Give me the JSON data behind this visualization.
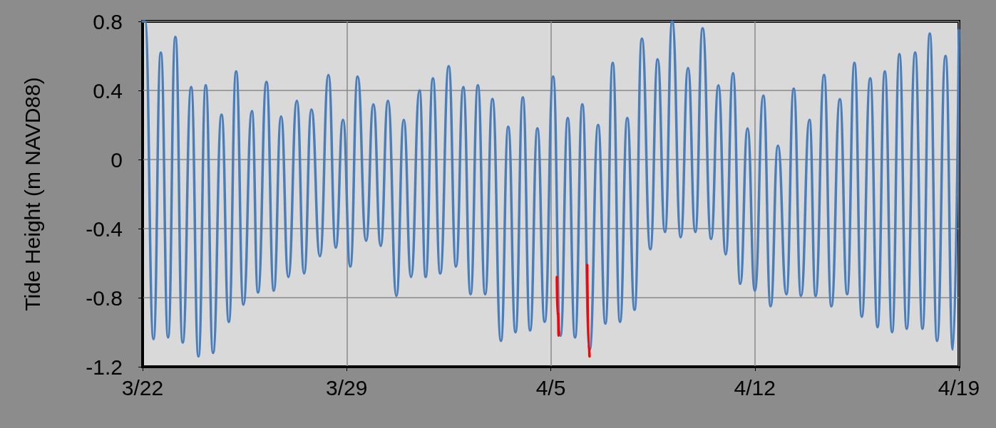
{
  "chart_data": {
    "type": "line",
    "ylabel": "Tide Height (m NAVD88)",
    "xlim": [
      "--03-22",
      "--04-19"
    ],
    "xticks": [
      {
        "value": "--03-22",
        "label": "3/22"
      },
      {
        "value": "--03-29",
        "label": "3/29"
      },
      {
        "value": "--04-05",
        "label": "4/5"
      },
      {
        "value": "--04-12",
        "label": "4/12"
      },
      {
        "value": "--04-19",
        "label": "4/19"
      }
    ],
    "ylim": [
      -1.2,
      0.8
    ],
    "yticks": [
      -1.2,
      -0.8,
      -0.4,
      0,
      0.4,
      0.8
    ],
    "grid": true,
    "marker": "none",
    "line_style": "solid",
    "series": [
      {
        "color": "#4a7ebb",
        "x": [
          "--03-22T00:00",
          "--03-22T02:00",
          "--03-22T09:00",
          "--03-22T15:00",
          "--03-22T21:00",
          "--03-23T03:00",
          "--03-23T09:00",
          "--03-23T16:00",
          "--03-23T22:00",
          "--03-24T04:00",
          "--03-24T10:00",
          "--03-24T17:00",
          "--03-24T23:00",
          "--03-25T05:00",
          "--03-25T11:00",
          "--03-25T18:00",
          "--03-25T23:00",
          "--03-26T06:00",
          "--03-26T12:00",
          "--03-26T18:00",
          "--03-27T00:00",
          "--03-27T07:00",
          "--03-27T13:00",
          "--03-27T19:00",
          "--03-28T02:00",
          "--03-28T09:00",
          "--03-28T15:00",
          "--03-28T21:00",
          "--03-29T03:00",
          "--03-29T09:00",
          "--03-29T16:00",
          "--03-29T22:00",
          "--03-30T04:00",
          "--03-30T10:00",
          "--03-30T17:00",
          "--03-30T23:00",
          "--03-31T05:00",
          "--03-31T12:00",
          "--03-31T17:00",
          "--03-31T23:00",
          "--04-01T05:00",
          "--04-01T12:00",
          "--04-01T18:00",
          "--04-02T00:00",
          "--04-02T06:00",
          "--04-02T12:00",
          "--04-02T18:00",
          "--04-03T00:00",
          "--04-03T07:00",
          "--04-03T13:00",
          "--04-03T19:00",
          "--04-04T01:00",
          "--04-04T07:00",
          "--04-04T13:00",
          "--04-04T19:00",
          "--04-05T02:00",
          "--04-05T08:00",
          "--04-05T14:00",
          "--04-05T20:00",
          "--04-06T02:00",
          "--04-06T08:00",
          "--04-06T15:00",
          "--04-06T21:00",
          "--04-07T03:00",
          "--04-07T09:00",
          "--04-07T15:00",
          "--04-07T21:00",
          "--04-08T03:00",
          "--04-08T10:00",
          "--04-08T16:00",
          "--04-08T22:00",
          "--04-09T04:00",
          "--04-09T11:00",
          "--04-09T17:00",
          "--04-09T23:00",
          "--04-10T05:00",
          "--04-10T12:00",
          "--04-10T18:00",
          "--04-11T00:00",
          "--04-11T06:00",
          "--04-11T12:00",
          "--04-11T18:00",
          "--04-12T00:00",
          "--04-12T07:00",
          "--04-12T13:00",
          "--04-12T19:00",
          "--04-13T02:00",
          "--04-13T08:00",
          "--04-13T14:00",
          "--04-13T21:00",
          "--04-14T02:00",
          "--04-14T09:00",
          "--04-14T15:00",
          "--04-14T22:00",
          "--04-15T04:00",
          "--04-15T10:00",
          "--04-15T16:00",
          "--04-15T23:00",
          "--04-16T05:00",
          "--04-16T11:00",
          "--04-16T17:00",
          "--04-16T23:00",
          "--04-17T05:00",
          "--04-17T12:00",
          "--04-17T18:00",
          "--04-18T00:00",
          "--04-18T06:00",
          "--04-18T13:00",
          "--04-18T19:00",
          "--04-19T00:00"
        ],
        "values": [
          0.8,
          0.8,
          -1.04,
          0.62,
          -1.03,
          0.71,
          -1.06,
          0.42,
          -1.14,
          0.43,
          -1.12,
          0.26,
          -0.94,
          0.51,
          -0.84,
          0.28,
          -0.77,
          0.45,
          -0.76,
          0.25,
          -0.68,
          0.34,
          -0.66,
          0.29,
          -0.56,
          0.49,
          -0.51,
          0.23,
          -0.62,
          0.48,
          -0.47,
          0.32,
          -0.5,
          0.34,
          -0.79,
          0.23,
          -0.68,
          0.4,
          -0.68,
          0.47,
          -0.66,
          0.54,
          -0.62,
          0.42,
          -0.78,
          0.43,
          -0.78,
          0.35,
          -1.05,
          0.19,
          -1.0,
          0.36,
          -0.99,
          0.18,
          -0.94,
          0.48,
          -1.02,
          0.24,
          -1.03,
          0.32,
          -1.1,
          0.2,
          -0.95,
          0.56,
          -0.94,
          0.24,
          -0.87,
          0.7,
          -0.52,
          0.58,
          -0.42,
          0.8,
          -0.45,
          0.53,
          -0.42,
          0.76,
          -0.46,
          0.43,
          -0.55,
          0.5,
          -0.72,
          0.18,
          -0.76,
          0.37,
          -0.85,
          0.08,
          -0.78,
          0.41,
          -0.79,
          0.23,
          -0.79,
          0.49,
          -0.85,
          0.35,
          -0.78,
          0.56,
          -0.91,
          0.47,
          -0.97,
          0.51,
          -1.0,
          0.61,
          -0.98,
          0.62,
          -0.98,
          0.73,
          -1.05,
          0.6,
          -1.1,
          0.75
        ]
      },
      {
        "color": "#ff0000",
        "x": [
          "--04-05T05:00",
          "--04-05T05:30",
          "--04-05T06:00",
          "--04-05T06:30",
          "--04-05T06:45"
        ],
        "values": [
          -0.68,
          -0.9,
          -0.89,
          -1.02,
          -1.0
        ]
      },
      {
        "color": "#ff0000",
        "x": [
          "--04-06T06:00",
          "--04-06T07:12",
          "--04-06T07:26",
          "--04-06T07:55"
        ],
        "values": [
          -0.61,
          -1.07,
          -1.08,
          -1.14
        ]
      }
    ]
  }
}
